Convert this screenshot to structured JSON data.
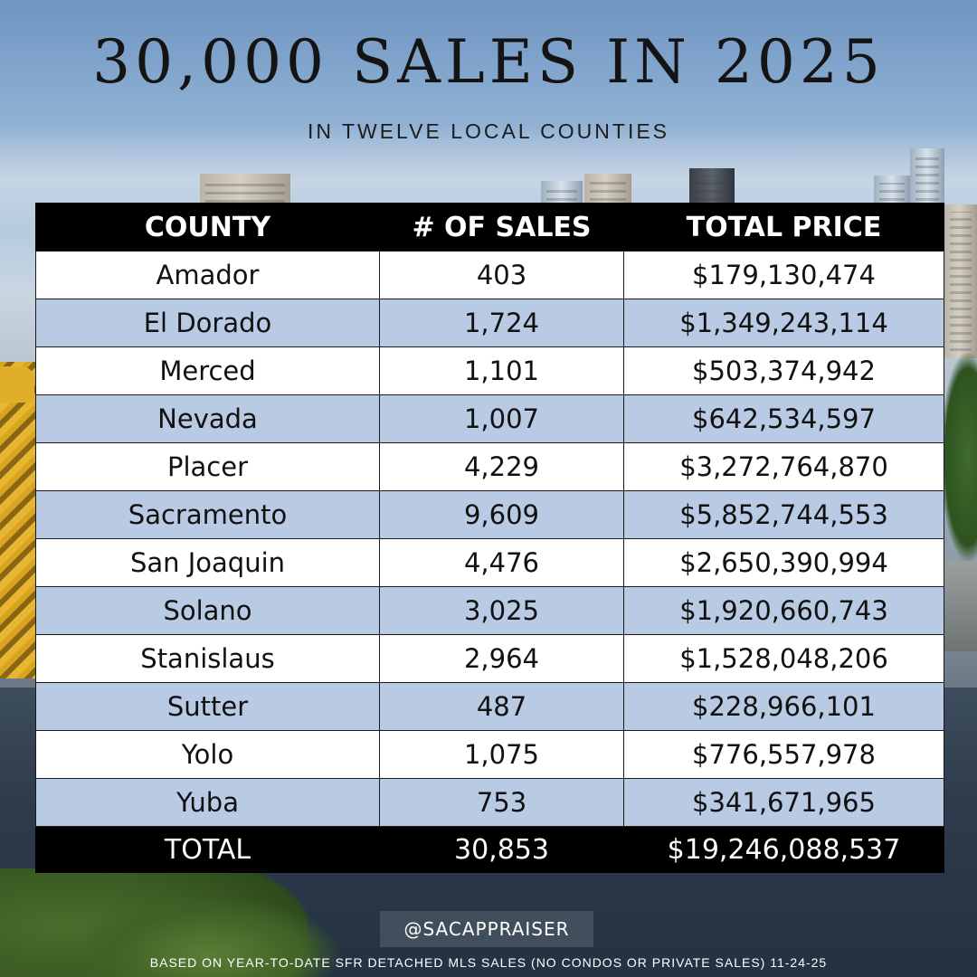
{
  "header": {
    "title": "30,000 SALES IN 2025",
    "subtitle": "IN TWELVE LOCAL COUNTIES"
  },
  "table": {
    "columns": [
      "COUNTY",
      "# OF SALES",
      "TOTAL PRICE"
    ],
    "rows": [
      [
        "Amador",
        "403",
        "$179,130,474"
      ],
      [
        "El Dorado",
        "1,724",
        "$1,349,243,114"
      ],
      [
        "Merced",
        "1,101",
        "$503,374,942"
      ],
      [
        "Nevada",
        "1,007",
        "$642,534,597"
      ],
      [
        "Placer",
        "4,229",
        "$3,272,764,870"
      ],
      [
        "Sacramento",
        "9,609",
        "$5,852,744,553"
      ],
      [
        "San Joaquin",
        "4,476",
        "$2,650,390,994"
      ],
      [
        "Solano",
        "3,025",
        "$1,920,660,743"
      ],
      [
        "Stanislaus",
        "2,964",
        "$1,528,048,206"
      ],
      [
        "Sutter",
        "487",
        "$228,966,101"
      ],
      [
        "Yolo",
        "1,075",
        "$776,557,978"
      ],
      [
        "Yuba",
        "753",
        "$341,671,965"
      ]
    ],
    "total": [
      "TOTAL",
      "30,853",
      "$19,246,088,537"
    ]
  },
  "footer": {
    "handle": "@SACAPPRAISER",
    "note": "BASED ON YEAR-TO-DATE SFR DETACHED MLS SALES (NO CONDOS OR PRIVATE SALES) 11-24-25"
  },
  "colors": {
    "header_bg": "#000000",
    "row_alt": "#b9cae4",
    "row_plain": "#ffffff",
    "handle_bg": "#465260"
  }
}
